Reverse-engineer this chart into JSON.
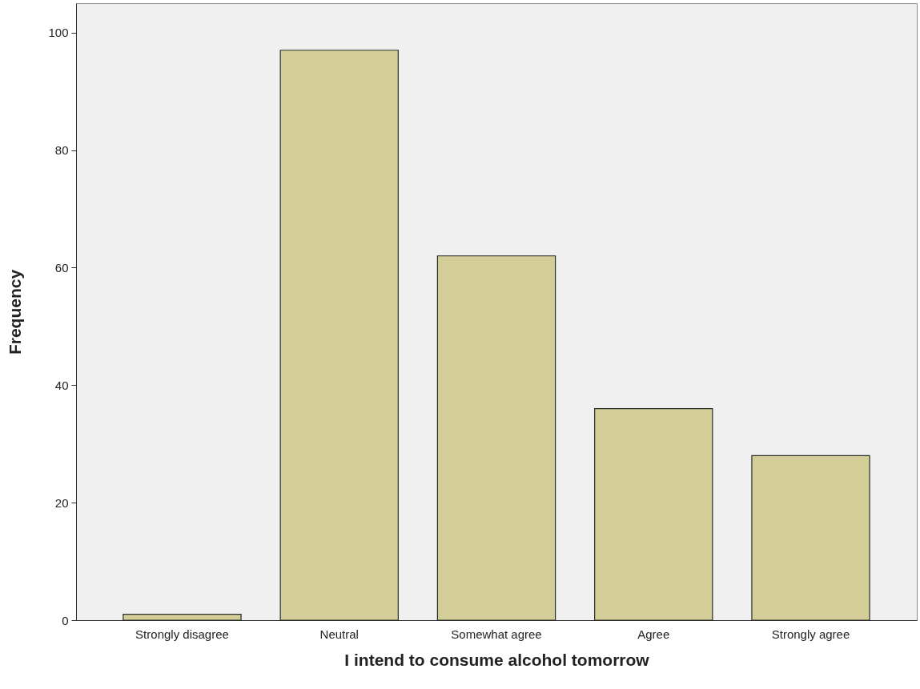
{
  "chart_data": {
    "type": "bar",
    "xlabel": "I intend to consume alcohol tomorrow",
    "ylabel": "Frequency",
    "categories": [
      "Strongly disagree",
      "Neutral",
      "Somewhat agree",
      "Agree",
      "Strongly agree"
    ],
    "values": [
      1,
      97,
      62,
      36,
      28
    ],
    "color": "#d3ce97",
    "ylim": [
      0,
      105
    ],
    "yticks": [
      0,
      20,
      40,
      60,
      80,
      100
    ],
    "grid": false
  }
}
